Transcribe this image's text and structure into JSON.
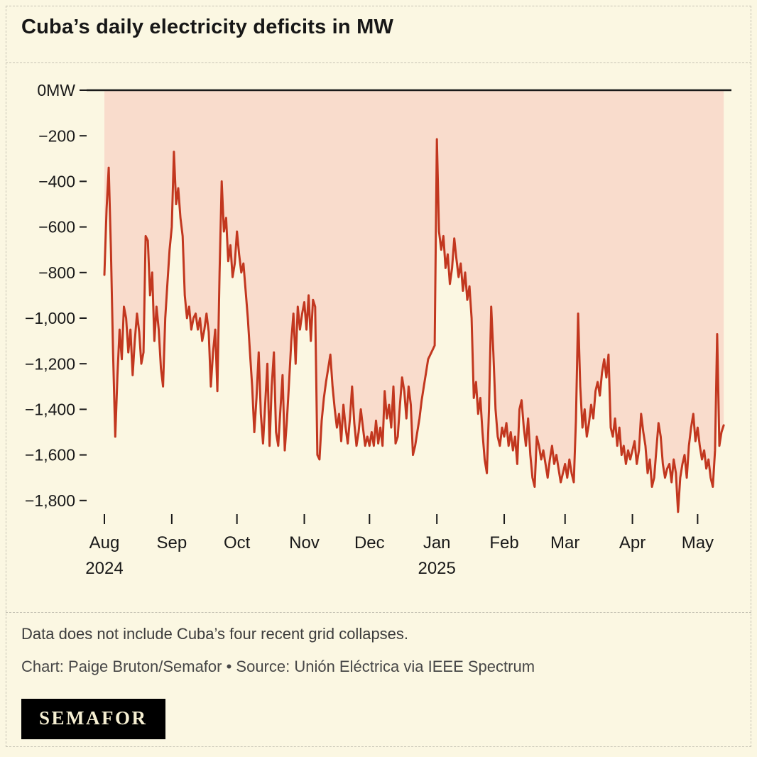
{
  "header": {
    "title": "Cuba’s daily electricity deficits in MW"
  },
  "chart_data": {
    "type": "line",
    "title": "Cuba’s daily electricity deficits in MW",
    "unit": "MW",
    "x_start": "2024-08-01",
    "x_end": "2025-05-13",
    "frequency": "daily",
    "ylim": [
      -1900,
      0
    ],
    "grid": false,
    "legend": "none",
    "y_ticks": [
      {
        "value": 0,
        "label": "0MW"
      },
      {
        "value": -200,
        "label": "−200"
      },
      {
        "value": -400,
        "label": "−400"
      },
      {
        "value": -600,
        "label": "−600"
      },
      {
        "value": -800,
        "label": "−800"
      },
      {
        "value": -1000,
        "label": "−1,000"
      },
      {
        "value": -1200,
        "label": "−1,200"
      },
      {
        "value": -1400,
        "label": "−1,400"
      },
      {
        "value": -1600,
        "label": "−1,600"
      },
      {
        "value": -1800,
        "label": "−1,800"
      }
    ],
    "x_ticks": [
      {
        "day_offset": 0,
        "label": "Aug",
        "year_label": "2024"
      },
      {
        "day_offset": 31,
        "label": "Sep"
      },
      {
        "day_offset": 61,
        "label": "Oct"
      },
      {
        "day_offset": 92,
        "label": "Nov"
      },
      {
        "day_offset": 122,
        "label": "Dec"
      },
      {
        "day_offset": 153,
        "label": "Jan",
        "year_label": "2025"
      },
      {
        "day_offset": 184,
        "label": "Feb"
      },
      {
        "day_offset": 212,
        "label": "Mar"
      },
      {
        "day_offset": 243,
        "label": "Apr"
      },
      {
        "day_offset": 273,
        "label": "May"
      }
    ],
    "series": [
      {
        "name": "Daily electricity deficit (MW)",
        "values": [
          -810,
          -520,
          -340,
          -700,
          -1150,
          -1520,
          -1250,
          -1050,
          -1180,
          -950,
          -1000,
          -1150,
          -1050,
          -1250,
          -1100,
          -980,
          -1060,
          -1200,
          -1150,
          -640,
          -660,
          -900,
          -800,
          -1100,
          -950,
          -1050,
          -1220,
          -1300,
          -1000,
          -850,
          -700,
          -600,
          -270,
          -500,
          -430,
          -560,
          -640,
          -900,
          -1000,
          -950,
          -1050,
          -1000,
          -980,
          -1050,
          -1000,
          -1100,
          -1050,
          -980,
          -1060,
          -1300,
          -1150,
          -1050,
          -1320,
          -800,
          -400,
          -620,
          -560,
          -750,
          -680,
          -820,
          -760,
          -620,
          -720,
          -800,
          -760,
          -880,
          -1000,
          -1150,
          -1300,
          -1500,
          -1350,
          -1150,
          -1420,
          -1550,
          -1380,
          -1200,
          -1560,
          -1300,
          -1150,
          -1500,
          -1560,
          -1400,
          -1250,
          -1580,
          -1450,
          -1280,
          -1100,
          -980,
          -1200,
          -950,
          -1050,
          -980,
          -930,
          -1050,
          -900,
          -1100,
          -920,
          -950,
          -1600,
          -1620,
          -1450,
          -1350,
          -1280,
          -1220,
          -1160,
          -1300,
          -1400,
          -1480,
          -1420,
          -1540,
          -1380,
          -1480,
          -1550,
          -1440,
          -1300,
          -1460,
          -1560,
          -1500,
          -1400,
          -1480,
          -1560,
          -1520,
          -1560,
          -1500,
          -1560,
          -1450,
          -1550,
          -1480,
          -1560,
          -1320,
          -1440,
          -1380,
          -1480,
          -1300,
          -1550,
          -1520,
          -1380,
          -1260,
          -1320,
          -1440,
          -1300,
          -1380,
          -1600,
          -1560,
          -1500,
          -1440,
          -1360,
          -1300,
          -1240,
          -1180,
          -1160,
          -1140,
          -1120,
          -215,
          -620,
          -700,
          -640,
          -780,
          -720,
          -850,
          -780,
          -650,
          -740,
          -820,
          -760,
          -880,
          -800,
          -920,
          -860,
          -1000,
          -1350,
          -1280,
          -1420,
          -1350,
          -1500,
          -1620,
          -1680,
          -1400,
          -950,
          -1150,
          -1400,
          -1520,
          -1560,
          -1480,
          -1520,
          -1460,
          -1560,
          -1500,
          -1580,
          -1520,
          -1640,
          -1400,
          -1360,
          -1480,
          -1560,
          -1440,
          -1600,
          -1700,
          -1740,
          -1520,
          -1560,
          -1620,
          -1580,
          -1640,
          -1700,
          -1620,
          -1560,
          -1640,
          -1600,
          -1660,
          -1720,
          -1680,
          -1640,
          -1700,
          -1620,
          -1680,
          -1720,
          -1450,
          -980,
          -1300,
          -1480,
          -1400,
          -1520,
          -1460,
          -1380,
          -1440,
          -1320,
          -1280,
          -1340,
          -1240,
          -1180,
          -1260,
          -1160,
          -1480,
          -1520,
          -1440,
          -1560,
          -1480,
          -1600,
          -1560,
          -1640,
          -1580,
          -1620,
          -1580,
          -1540,
          -1640,
          -1580,
          -1420,
          -1500,
          -1560,
          -1680,
          -1620,
          -1740,
          -1700,
          -1580,
          -1460,
          -1520,
          -1640,
          -1700,
          -1660,
          -1640,
          -1720,
          -1620,
          -1680,
          -1850,
          -1700,
          -1640,
          -1600,
          -1700,
          -1560,
          -1480,
          -1420,
          -1540,
          -1480,
          -1560,
          -1620,
          -1580,
          -1660,
          -1620,
          -1700,
          -1740,
          -1580,
          -1070,
          -1560,
          -1500,
          -1470
        ]
      }
    ],
    "colors": {
      "line": "#c2371f",
      "area_fill": "#f9dccc",
      "zero_axis": "#1a1a1a",
      "background": "#fbf7e2"
    }
  },
  "footer": {
    "note": "Data does not include Cuba’s four recent grid collapses.",
    "credit": "Chart: Paige Bruton/Semafor • Source: Unión Eléctrica via IEEE Spectrum",
    "logo_text": "SEMAFOR"
  }
}
